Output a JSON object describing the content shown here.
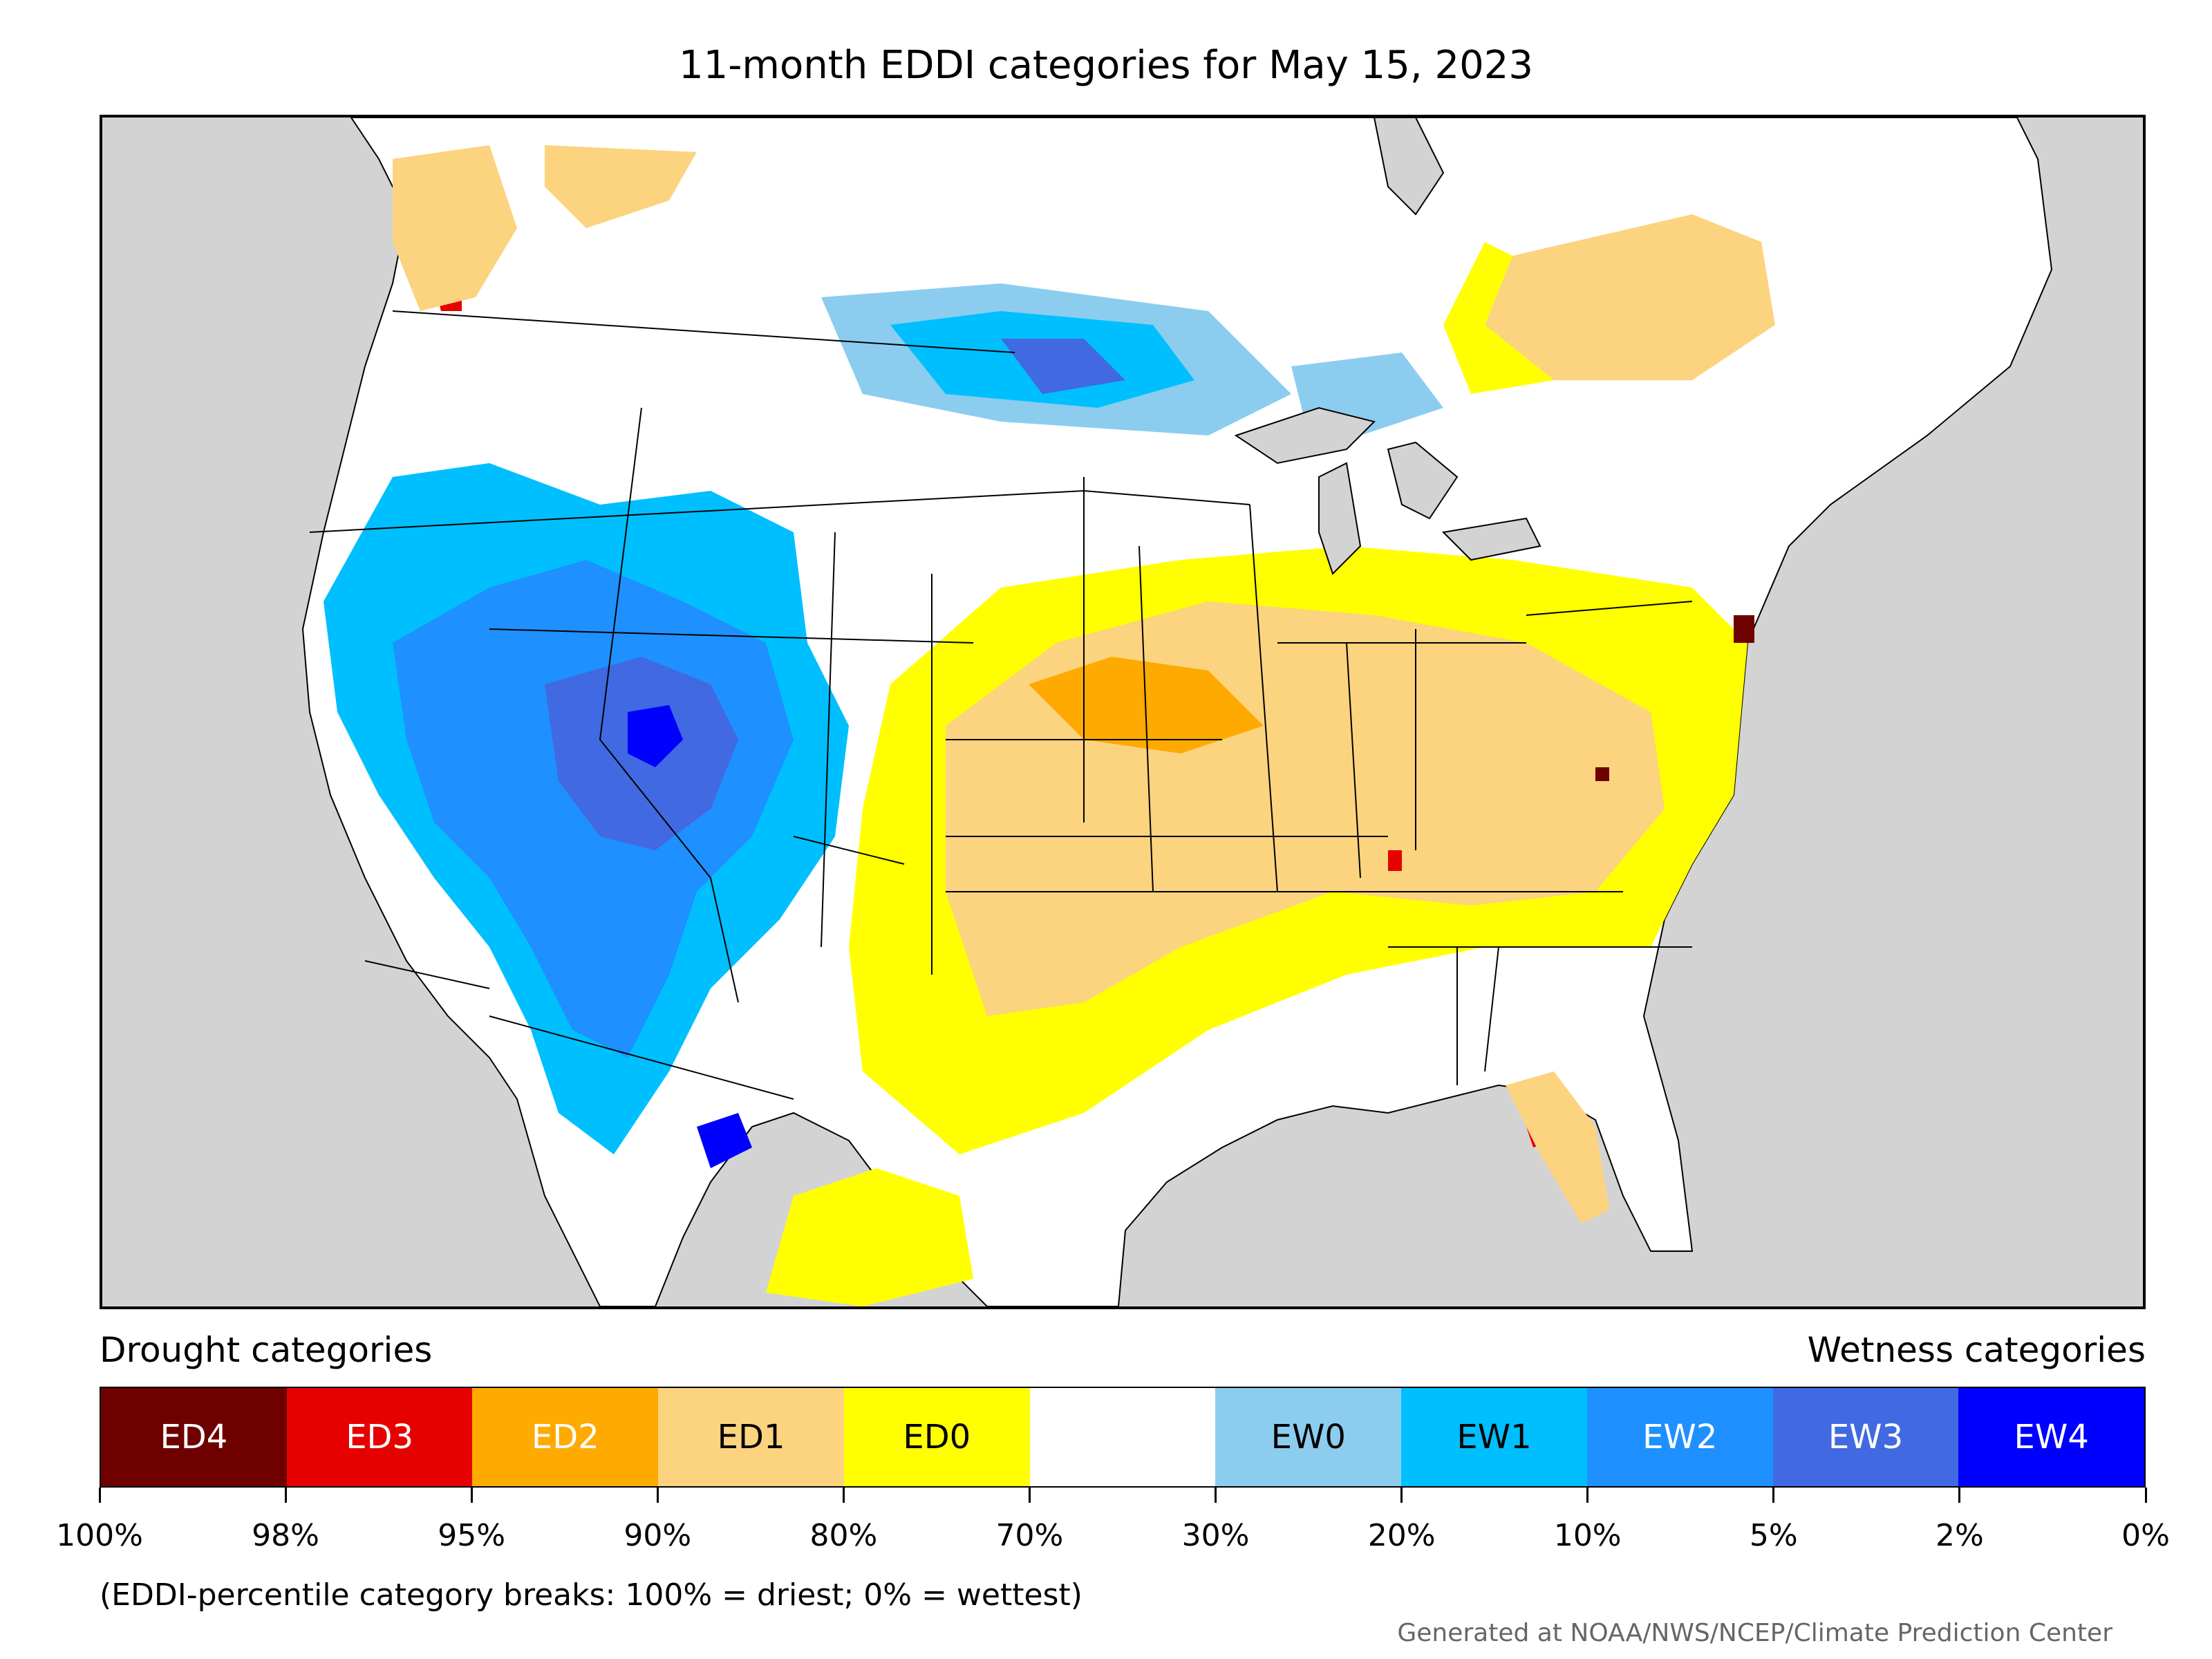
{
  "title": "11-month EDDI categories for May 15, 2023",
  "legend": {
    "left_label": "Drought categories",
    "right_label": "Wetness categories",
    "categories": [
      {
        "label": "ED4",
        "color": "#6e0000",
        "text_color": "#ffffff"
      },
      {
        "label": "ED3",
        "color": "#e60000",
        "text_color": "#ffffff"
      },
      {
        "label": "ED2",
        "color": "#ffaa00",
        "text_color": "#ffffff"
      },
      {
        "label": "ED1",
        "color": "#fcd37f",
        "text_color": "#000000"
      },
      {
        "label": "ED0",
        "color": "#ffff00",
        "text_color": "#000000"
      },
      {
        "label": "",
        "color": "#ffffff",
        "text_color": "#000000"
      },
      {
        "label": "EW0",
        "color": "#8ccdef",
        "text_color": "#000000"
      },
      {
        "label": "EW1",
        "color": "#00bfff",
        "text_color": "#000000"
      },
      {
        "label": "EW2",
        "color": "#1e90ff",
        "text_color": "#ffffff"
      },
      {
        "label": "EW3",
        "color": "#4169e1",
        "text_color": "#ffffff"
      },
      {
        "label": "EW4",
        "color": "#0000ff",
        "text_color": "#ffffff"
      }
    ],
    "breaks": [
      "100%",
      "98%",
      "95%",
      "90%",
      "80%",
      "70%",
      "30%",
      "20%",
      "10%",
      "5%",
      "2%",
      "0%"
    ]
  },
  "footnote": "(EDDI-percentile category breaks: 100% = driest; 0% = wettest)",
  "credit": "Generated at NOAA/NWS/NCEP/Climate Prediction Center",
  "colors": {
    "ocean": "#d3d3d3",
    "land": "#ffffff",
    "border": "#000000"
  }
}
